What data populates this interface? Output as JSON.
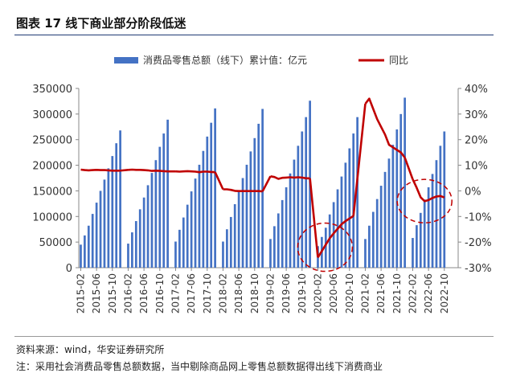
{
  "figure": {
    "title": "图表 17 线下商业部分阶段低迷",
    "source": "资料来源：wind，华安证券研究所",
    "note": "注：采用社会消费品零售总额数据，当中剔除商品网上零售总额数据得出线下消费商业"
  },
  "chart_data": {
    "type": "bar",
    "legend_position": "top",
    "grid": false,
    "x_tick_labels": [
      "2015-02",
      "2015-06",
      "2015-10",
      "2016-02",
      "2016-06",
      "2016-10",
      "2017-02",
      "2017-06",
      "2017-10",
      "2018-02",
      "2018-06",
      "2018-10",
      "2019-02",
      "2019-06",
      "2019-10",
      "2020-02",
      "2020-06",
      "2020-10",
      "2021-02",
      "2021-06",
      "2021-10",
      "2022-02",
      "2022-06",
      "2022-10"
    ],
    "y_left": {
      "ticks": [
        "0",
        "50000",
        "100000",
        "150000",
        "200000",
        "250000",
        "300000",
        "350000"
      ],
      "range": [
        0,
        350000
      ]
    },
    "y_right": {
      "ticks": [
        "-30%",
        "-20%",
        "-10%",
        "0%",
        "10%",
        "20%",
        "30%",
        "40%"
      ],
      "range": [
        -30,
        40
      ]
    },
    "series": [
      {
        "name": "消费品零售总额（线下）累计值：亿元",
        "type": "bar",
        "color": "#4472c4",
        "axis": "left",
        "values": [
          [
            45000,
            63000,
            82000,
            105000,
            127000,
            150000,
            172000,
            194000,
            218000,
            243000,
            268000
          ],
          [
            47000,
            69000,
            91000,
            114000,
            137000,
            161000,
            185000,
            210000,
            236000,
            262000,
            289000
          ],
          [
            51000,
            74000,
            98000,
            123000,
            149000,
            174000,
            201000,
            228000,
            256000,
            283000,
            311000
          ],
          [
            51000,
            75000,
            99000,
            124000,
            150000,
            175000,
            201000,
            227000,
            253000,
            281000,
            310000
          ],
          [
            56000,
            81000,
            106000,
            132000,
            157000,
            184000,
            211000,
            238000,
            266000,
            294000,
            326000
          ],
          [
            42000,
            60000,
            78000,
            104000,
            128000,
            153000,
            178000,
            205000,
            233000,
            262000,
            294000
          ],
          [
            56000,
            82000,
            109000,
            134000,
            160000,
            187000,
            213000,
            240000,
            270000,
            300000,
            332000
          ],
          [
            58000,
            83000,
            107000,
            133000,
            157000,
            183000,
            210000,
            238000,
            266000
          ]
        ]
      },
      {
        "name": "同比",
        "type": "line",
        "color": "#c00000",
        "axis": "right",
        "segments": [
          [
            8.3,
            8.1,
            8.0,
            8.1,
            8.2,
            8.1,
            8.1,
            8.0,
            7.9,
            7.9,
            7.9
          ],
          [
            8.2,
            8.3,
            8.2,
            8.2,
            8.1,
            8.0,
            7.8,
            7.9,
            7.8,
            7.7,
            7.6
          ],
          [
            7.6,
            7.5,
            7.6,
            7.7,
            7.6,
            7.5,
            7.3,
            7.5,
            7.5,
            7.4,
            7.3
          ],
          [
            0.6,
            0.6,
            0.4,
            0.0,
            -0.1,
            -0.1,
            -0.1,
            -0.1,
            -0.1,
            -0.1,
            -0.2
          ],
          [
            5.7,
            5.4,
            4.7,
            5.1,
            5.2,
            5.3,
            5.2,
            5.3,
            5.2,
            4.9,
            4.9
          ],
          [
            -26.0,
            -23.5,
            -21.0,
            -18.5,
            -16.6,
            -14.8,
            -13.0,
            -11.8,
            -10.8,
            -9.8
          ],
          [
            34.0,
            36.0,
            32.0,
            28.0,
            25.0,
            22.0,
            18.0,
            17.0,
            16.0,
            15.0,
            13.0
          ],
          [
            4.5,
            1.2,
            -2.5,
            -4.0,
            -3.6,
            -2.8,
            -2.2,
            -2.0,
            -2.6
          ]
        ]
      }
    ],
    "annotations": [
      "dashed-circle",
      "dashed-circle"
    ]
  }
}
